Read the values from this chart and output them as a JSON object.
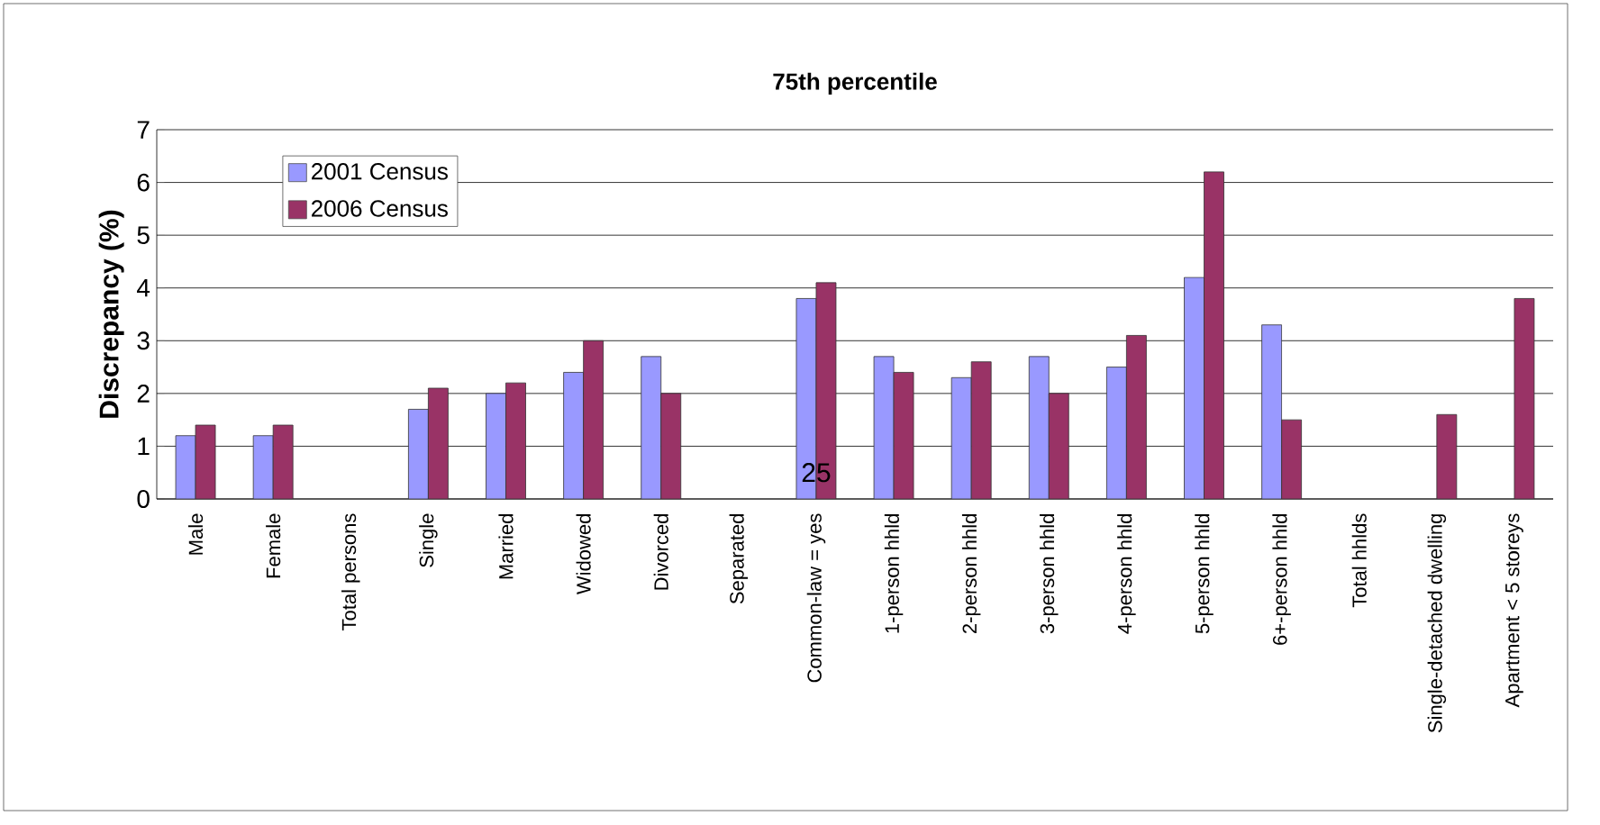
{
  "chart_data": {
    "type": "bar",
    "title": "75th percentile",
    "ylabel": "Discrepancy (%)",
    "categories": [
      "Male",
      "Female",
      "Total persons",
      "Single",
      "Married",
      "Widowed",
      "Divorced",
      "Separated",
      "Common-law = yes",
      "1-person hhld",
      "2-person hhld",
      "3-person hhld",
      "4-person hhld",
      "5-person hhld",
      "6+-person hhld",
      "Total hhlds",
      "Single-detached dwelling",
      "Apartment < 5 storeys"
    ],
    "series": [
      {
        "name": "2001 Census",
        "color": "#9999ff",
        "values": [
          1.2,
          1.2,
          null,
          1.7,
          2.0,
          2.4,
          2.7,
          null,
          3.8,
          2.7,
          2.3,
          2.7,
          2.5,
          4.2,
          3.3,
          null,
          null,
          null
        ]
      },
      {
        "name": "2006 Census",
        "color": "#993366",
        "values": [
          1.4,
          1.4,
          null,
          2.1,
          2.2,
          3.0,
          2.0,
          null,
          4.1,
          2.4,
          2.6,
          2.0,
          3.1,
          6.2,
          1.5,
          null,
          1.6,
          3.8
        ]
      }
    ],
    "annotations": [
      {
        "text": "25",
        "x": "Common-law = yes",
        "y": 0.5
      }
    ],
    "ylim": [
      0,
      7
    ],
    "yticks": [
      0,
      1,
      2,
      3,
      4,
      5,
      6,
      7
    ],
    "grid": "y",
    "legend": "top left"
  }
}
